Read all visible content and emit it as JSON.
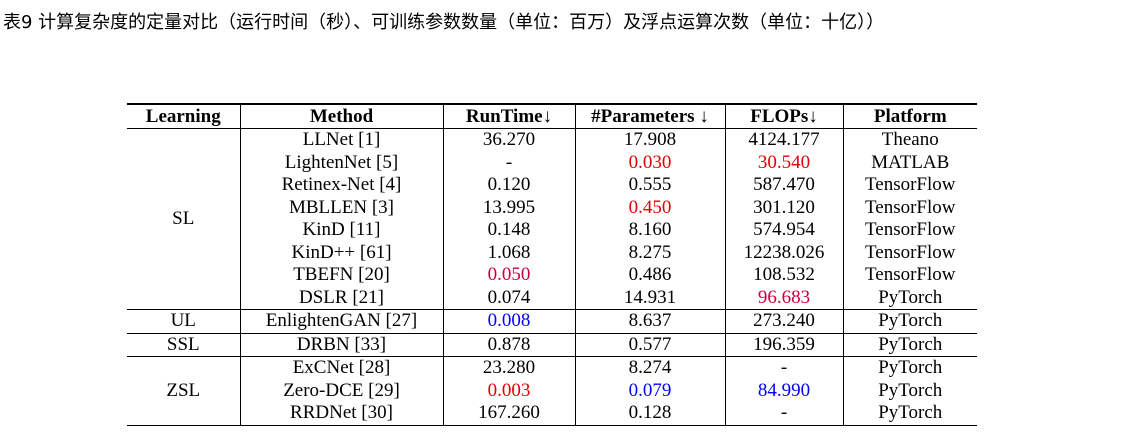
{
  "caption": "表9 计算复杂度的定量对比（运行时间（秒）、可训练参数数量（单位：百万）及浮点运算次数（单位：十亿））",
  "table": {
    "header": [
      "Learning",
      "Method",
      "RunTime↓",
      "#Parameters ↓",
      "FLOPs↓",
      "Platform"
    ],
    "groups": [
      {
        "learning": "SL",
        "rows": [
          [
            "LLNet [1]",
            "36.270",
            "17.908",
            "4124.177",
            "Theano"
          ],
          [
            "LightenNet [5]",
            "-",
            "0.030",
            "30.540",
            "MATLAB"
          ],
          [
            "Retinex-Net [4]",
            "0.120",
            "0.555",
            "587.470",
            "TensorFlow"
          ],
          [
            "MBLLEN [3]",
            "13.995",
            "0.450",
            "301.120",
            "TensorFlow"
          ],
          [
            "KinD [11]",
            "0.148",
            "8.160",
            "574.954",
            "TensorFlow"
          ],
          [
            "KinD++ [61]",
            "1.068",
            "8.275",
            "12238.026",
            "TensorFlow"
          ],
          [
            "TBEFN [20]",
            "0.050",
            "0.486",
            "108.532",
            "TensorFlow"
          ],
          [
            "DSLR [21]",
            "0.074",
            "14.931",
            "96.683",
            "PyTorch"
          ]
        ]
      },
      {
        "learning": "UL",
        "rows": [
          [
            "EnlightenGAN [27]",
            "0.008",
            "8.637",
            "273.240",
            "PyTorch"
          ]
        ]
      },
      {
        "learning": "SSL",
        "rows": [
          [
            "DRBN [33]",
            "0.878",
            "0.577",
            "196.359",
            "PyTorch"
          ]
        ]
      },
      {
        "learning": "ZSL",
        "rows": [
          [
            "ExCNet [28]",
            "23.280",
            "8.274",
            "-",
            "PyTorch"
          ],
          [
            "Zero-DCE [29]",
            "0.003",
            "0.079",
            "84.990",
            "PyTorch"
          ],
          [
            "RRDNet [30]",
            "167.260",
            "0.128",
            "-",
            "PyTorch"
          ]
        ]
      }
    ],
    "highlights": [
      {
        "group": 0,
        "row": 1,
        "col": 2,
        "color": "#e00000"
      },
      {
        "group": 0,
        "row": 1,
        "col": 3,
        "color": "#e00000"
      },
      {
        "group": 0,
        "row": 3,
        "col": 2,
        "color": "#e00000"
      },
      {
        "group": 0,
        "row": 6,
        "col": 1,
        "color": "#c8003c"
      },
      {
        "group": 0,
        "row": 7,
        "col": 3,
        "color": "#c8003c"
      },
      {
        "group": 1,
        "row": 0,
        "col": 1,
        "color": "#0000ff"
      },
      {
        "group": 3,
        "row": 1,
        "col": 1,
        "color": "#e00000"
      },
      {
        "group": 3,
        "row": 1,
        "col": 2,
        "color": "#0000ff"
      },
      {
        "group": 3,
        "row": 1,
        "col": 3,
        "color": "#0000ff"
      }
    ]
  }
}
